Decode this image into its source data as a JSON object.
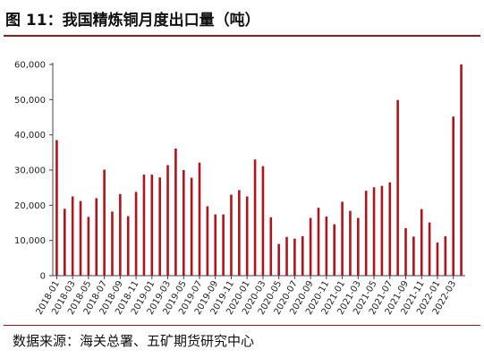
{
  "title": "图 11：我国精炼铜月度出口量（吨）",
  "source": "数据来源：海关总署、五矿期货研究中心",
  "colors": {
    "bar": "#b0141c",
    "title_rule": "#9a1b1f",
    "axis": "#444444"
  },
  "chart_data": {
    "type": "bar",
    "title": "我国精炼铜月度出口量（吨）",
    "xlabel": "",
    "ylabel": "",
    "ylim": [
      0,
      60000
    ],
    "yticks": [
      0,
      10000,
      20000,
      30000,
      40000,
      50000,
      60000
    ],
    "ytick_labels": [
      "0",
      "10,000",
      "20,000",
      "30,000",
      "40,000",
      "50,000",
      "60,000"
    ],
    "grid": false,
    "legend": "none",
    "categories": [
      "2018-01",
      "2018-02",
      "2018-03",
      "2018-04",
      "2018-05",
      "2018-06",
      "2018-07",
      "2018-08",
      "2018-09",
      "2018-10",
      "2018-11",
      "2018-12",
      "2019-01",
      "2019-02",
      "2019-03",
      "2019-04",
      "2019-05",
      "2019-06",
      "2019-07",
      "2019-08",
      "2019-09",
      "2019-10",
      "2019-11",
      "2019-12",
      "2020-01",
      "2020-02",
      "2020-03",
      "2020-04",
      "2020-05",
      "2020-06",
      "2020-07",
      "2020-08",
      "2020-09",
      "2020-10",
      "2020-11",
      "2020-12",
      "2021-01",
      "2021-02",
      "2021-03",
      "2021-04",
      "2021-05",
      "2021-06",
      "2021-07",
      "2021-08",
      "2021-09",
      "2021-10",
      "2021-11",
      "2021-12",
      "2022-01",
      "2022-02",
      "2022-03",
      "2022-04"
    ],
    "tick_labels": [
      "2018-01",
      "2018-03",
      "2018-05",
      "2018-07",
      "2018-09",
      "2018-11",
      "2019-01",
      "2019-03",
      "2019-05",
      "2019-07",
      "2019-09",
      "2019-11",
      "2020-01",
      "2020-03",
      "2020-05",
      "2020-07",
      "2020-09",
      "2020-11",
      "2021-01",
      "2021-03",
      "2021-05",
      "2021-07",
      "2021-09",
      "2021-11",
      "2022-01",
      "2022-03"
    ],
    "values": [
      38500,
      19000,
      22500,
      21200,
      16700,
      22000,
      30100,
      18200,
      23200,
      16900,
      23800,
      28700,
      28700,
      27900,
      31400,
      36100,
      30000,
      27800,
      32100,
      19700,
      17400,
      17400,
      23000,
      24300,
      22500,
      33000,
      31100,
      16600,
      9000,
      11000,
      10500,
      11200,
      16400,
      19300,
      16800,
      14600,
      21000,
      18400,
      16400,
      24100,
      25100,
      25500,
      26500,
      49900,
      13500,
      11100,
      18900,
      15100,
      9400,
      11200,
      45200,
      60000
    ]
  }
}
